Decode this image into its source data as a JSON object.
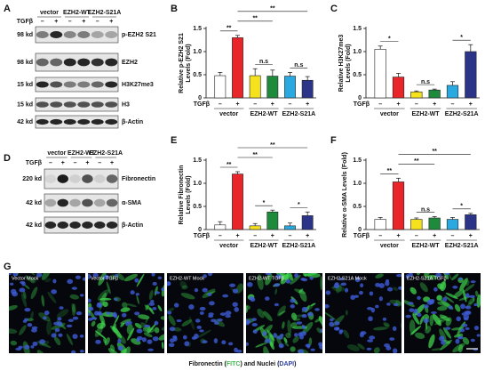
{
  "blots": [
    {
      "panel": "A",
      "groups": [
        "vector",
        "EZH2-WT",
        "EZH2-S21A"
      ],
      "treatment_label": "TGFβ",
      "treatment": [
        "–",
        "+",
        "–",
        "+",
        "–",
        "+"
      ],
      "rows": [
        {
          "size": "98 kd",
          "label": "p-EZH2 S21"
        },
        {
          "size": "98 kd",
          "label": "EZH2"
        },
        {
          "size": "15 kd",
          "label": "H3K27me3"
        },
        {
          "size": "15 kd",
          "label": "H3"
        },
        {
          "size": "42 kd",
          "label": "β-Actin"
        }
      ]
    },
    {
      "panel": "D",
      "groups": [
        "vector",
        "EZH2-WT",
        "EZH2-S21A"
      ],
      "treatment_label": "TGFβ",
      "treatment": [
        "–",
        "+",
        "–",
        "+",
        "–",
        "+"
      ],
      "rows": [
        {
          "size": "220 kd",
          "label": "Fibronectin"
        },
        {
          "size": "42 kd",
          "label": "α-SMA"
        },
        {
          "size": "42 kd",
          "label": "β-Actin"
        }
      ]
    }
  ],
  "chart_data": [
    {
      "type": "bar",
      "panel": "B",
      "ylabel": [
        "Relative p-EZH2 S21",
        "Levels (Fold)"
      ],
      "treatment_label": "TGFβ",
      "categories": [
        "–",
        "+",
        "–",
        "+",
        "–",
        "+"
      ],
      "groups": [
        "vector",
        "EZH2-WT",
        "EZH2-S21A"
      ],
      "colors": [
        "#ffffff",
        "#e8262a",
        "#f5e11c",
        "#1e8a3c",
        "#29a9df",
        "#2b3486"
      ],
      "values": [
        0.48,
        1.3,
        0.48,
        0.47,
        0.47,
        0.38
      ],
      "errors": [
        0.07,
        0.05,
        0.15,
        0.13,
        0.08,
        0.08
      ],
      "ylim": [
        0,
        1.5
      ],
      "yticks": [
        0,
        0.5,
        {
          "value": 1,
          "label": "1.0"
        },
        1.5
      ],
      "annotations": [
        {
          "text": "**",
          "from": 0,
          "to": 1
        },
        {
          "text": "n.s",
          "from": 2,
          "to": 3
        },
        {
          "text": "n.s",
          "from": 4,
          "to": 5
        },
        {
          "text": "**",
          "from": 1,
          "to": 3
        },
        {
          "text": "**",
          "from": 1,
          "to": 5
        }
      ]
    },
    {
      "type": "bar",
      "panel": "C",
      "ylabel": [
        "Relative H3K27me3",
        "Levels (Fold)"
      ],
      "treatment_label": "TGFβ",
      "categories": [
        "–",
        "+",
        "–",
        "+",
        "–",
        "+"
      ],
      "groups": [
        "vector",
        "EZH2-WT",
        "EZH2-S21A"
      ],
      "colors": [
        "#ffffff",
        "#e8262a",
        "#f5e11c",
        "#1e8a3c",
        "#29a9df",
        "#2b3486"
      ],
      "values": [
        1.05,
        0.45,
        0.13,
        0.17,
        0.27,
        1.0
      ],
      "errors": [
        0.07,
        0.08,
        0.02,
        0.02,
        0.08,
        0.15
      ],
      "ylim": [
        0,
        1.5
      ],
      "yticks": [
        0,
        0.5,
        {
          "value": 1,
          "label": "1.0"
        },
        1.5
      ],
      "annotations": [
        {
          "text": "*",
          "from": 0,
          "to": 1
        },
        {
          "text": "n.s",
          "from": 2,
          "to": 3
        },
        {
          "text": "*",
          "from": 4,
          "to": 5
        }
      ]
    },
    {
      "type": "bar",
      "panel": "E",
      "ylabel": [
        "Relative Fibronectin",
        "Levels (Fold)"
      ],
      "treatment_label": "TGFβ",
      "categories": [
        "–",
        "+",
        "–",
        "+",
        "–",
        "+"
      ],
      "groups": [
        "vector",
        "EZH2-WT",
        "EZH2-S21A"
      ],
      "colors": [
        "#ffffff",
        "#e8262a",
        "#f5e11c",
        "#1e8a3c",
        "#29a9df",
        "#2b3486"
      ],
      "values": [
        0.1,
        1.2,
        0.08,
        0.38,
        0.08,
        0.3
      ],
      "errors": [
        0.07,
        0.05,
        0.05,
        0.04,
        0.06,
        0.08
      ],
      "ylim": [
        0,
        1.5
      ],
      "yticks": [
        0,
        0.5,
        {
          "value": 1,
          "label": "1.0"
        },
        1.5
      ],
      "annotations": [
        {
          "text": "**",
          "from": 0,
          "to": 1
        },
        {
          "text": "*",
          "from": 2,
          "to": 3
        },
        {
          "text": "*",
          "from": 4,
          "to": 5
        },
        {
          "text": "**",
          "from": 1,
          "to": 3
        },
        {
          "text": "**",
          "from": 1,
          "to": 5
        }
      ]
    },
    {
      "type": "bar",
      "panel": "F",
      "ylabel": [
        "Relative α-SMA Levels (Fold)"
      ],
      "treatment_label": "TGFβ",
      "categories": [
        "–",
        "+",
        "–",
        "+",
        "–",
        "+"
      ],
      "groups": [
        "vector",
        "EZH2-WT",
        "EZH2-S21A"
      ],
      "colors": [
        "#ffffff",
        "#e8262a",
        "#f5e11c",
        "#1e8a3c",
        "#29a9df",
        "#2b3486"
      ],
      "values": [
        0.22,
        1.03,
        0.22,
        0.25,
        0.22,
        0.32
      ],
      "errors": [
        0.04,
        0.08,
        0.03,
        0.03,
        0.04,
        0.03
      ],
      "ylim": [
        0,
        1.5
      ],
      "yticks": [
        0,
        0.5,
        {
          "value": 1,
          "label": "1.0"
        },
        1.5
      ],
      "annotations": [
        {
          "text": "**",
          "from": 0,
          "to": 1
        },
        {
          "text": "n.s",
          "from": 2,
          "to": 3
        },
        {
          "text": "*",
          "from": 4,
          "to": 5
        },
        {
          "text": "**",
          "from": 1,
          "to": 3
        },
        {
          "text": "**",
          "from": 1,
          "to": 5
        }
      ]
    }
  ],
  "images": {
    "panel": "G",
    "labels": [
      "Vector Mock",
      "Vector TGFβ",
      "EZH2-WT Mock",
      "EZH2-WT TGFβ",
      "EZH2-S21A Mock",
      "EZH2-S21A TGFβ"
    ],
    "caption": [
      {
        "text": "Fibronectin ("
      },
      {
        "text": "FITC",
        "color": "#3cb64a"
      },
      {
        "text": ") and Nuclei ("
      },
      {
        "text": "DAPI",
        "color": "#2c3fa8"
      },
      {
        "text": ")"
      }
    ]
  }
}
